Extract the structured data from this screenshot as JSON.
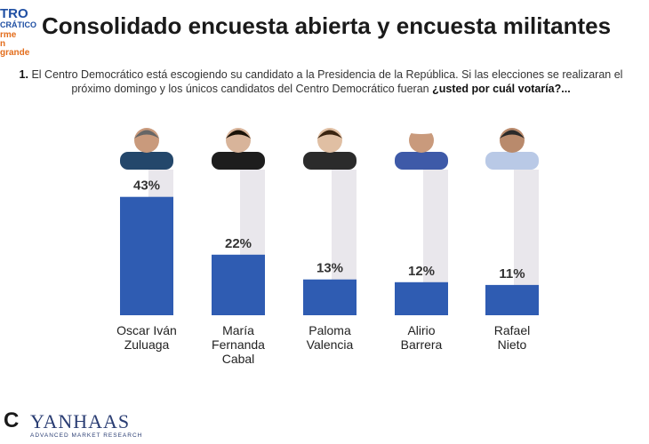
{
  "logo": {
    "line1": "TRO",
    "line2": "CRÁTICO",
    "line3": "rme",
    "line4": "n grande"
  },
  "header": {
    "title": "Consolidado encuesta abierta y encuesta militantes"
  },
  "question": {
    "number": "1.",
    "text": "El Centro Democrático está escogiendo su candidato a la  Presidencia de la República. Si las elecciones se realizaran el próximo domingo y los únicos candidatos del Centro Democrático fueran",
    "bold": "¿usted por cuál votaría?..."
  },
  "footer": {
    "letter": "C",
    "brand": "YANHAAS",
    "tagline": "ADVANCED MARKET RESEARCH"
  },
  "colors": {
    "bar": "#2f5cb2",
    "track": "#e9e7ec",
    "accent_blue": "#1f4fa3",
    "accent_orange": "#e36d1c"
  },
  "chart_data": {
    "type": "bar",
    "categories": [
      "Oscar Iván Zuluaga",
      "María Fernanda Cabal",
      "Paloma Valencia",
      "Alirio Barrera",
      "Rafael Nieto"
    ],
    "category_lines": [
      [
        "Oscar Iván",
        "Zuluaga"
      ],
      [
        "María",
        "Fernanda",
        "Cabal"
      ],
      [
        "Paloma",
        "Valencia"
      ],
      [
        "Alirio",
        "Barrera"
      ],
      [
        "Rafael",
        "Nieto"
      ]
    ],
    "values": [
      43,
      22,
      13,
      12,
      11
    ],
    "labels": [
      "43%",
      "22%",
      "13%",
      "12%",
      "11%"
    ],
    "ylim": [
      0,
      100
    ],
    "title": "",
    "xlabel": "",
    "ylabel": "",
    "grid": false,
    "legend": "none"
  }
}
